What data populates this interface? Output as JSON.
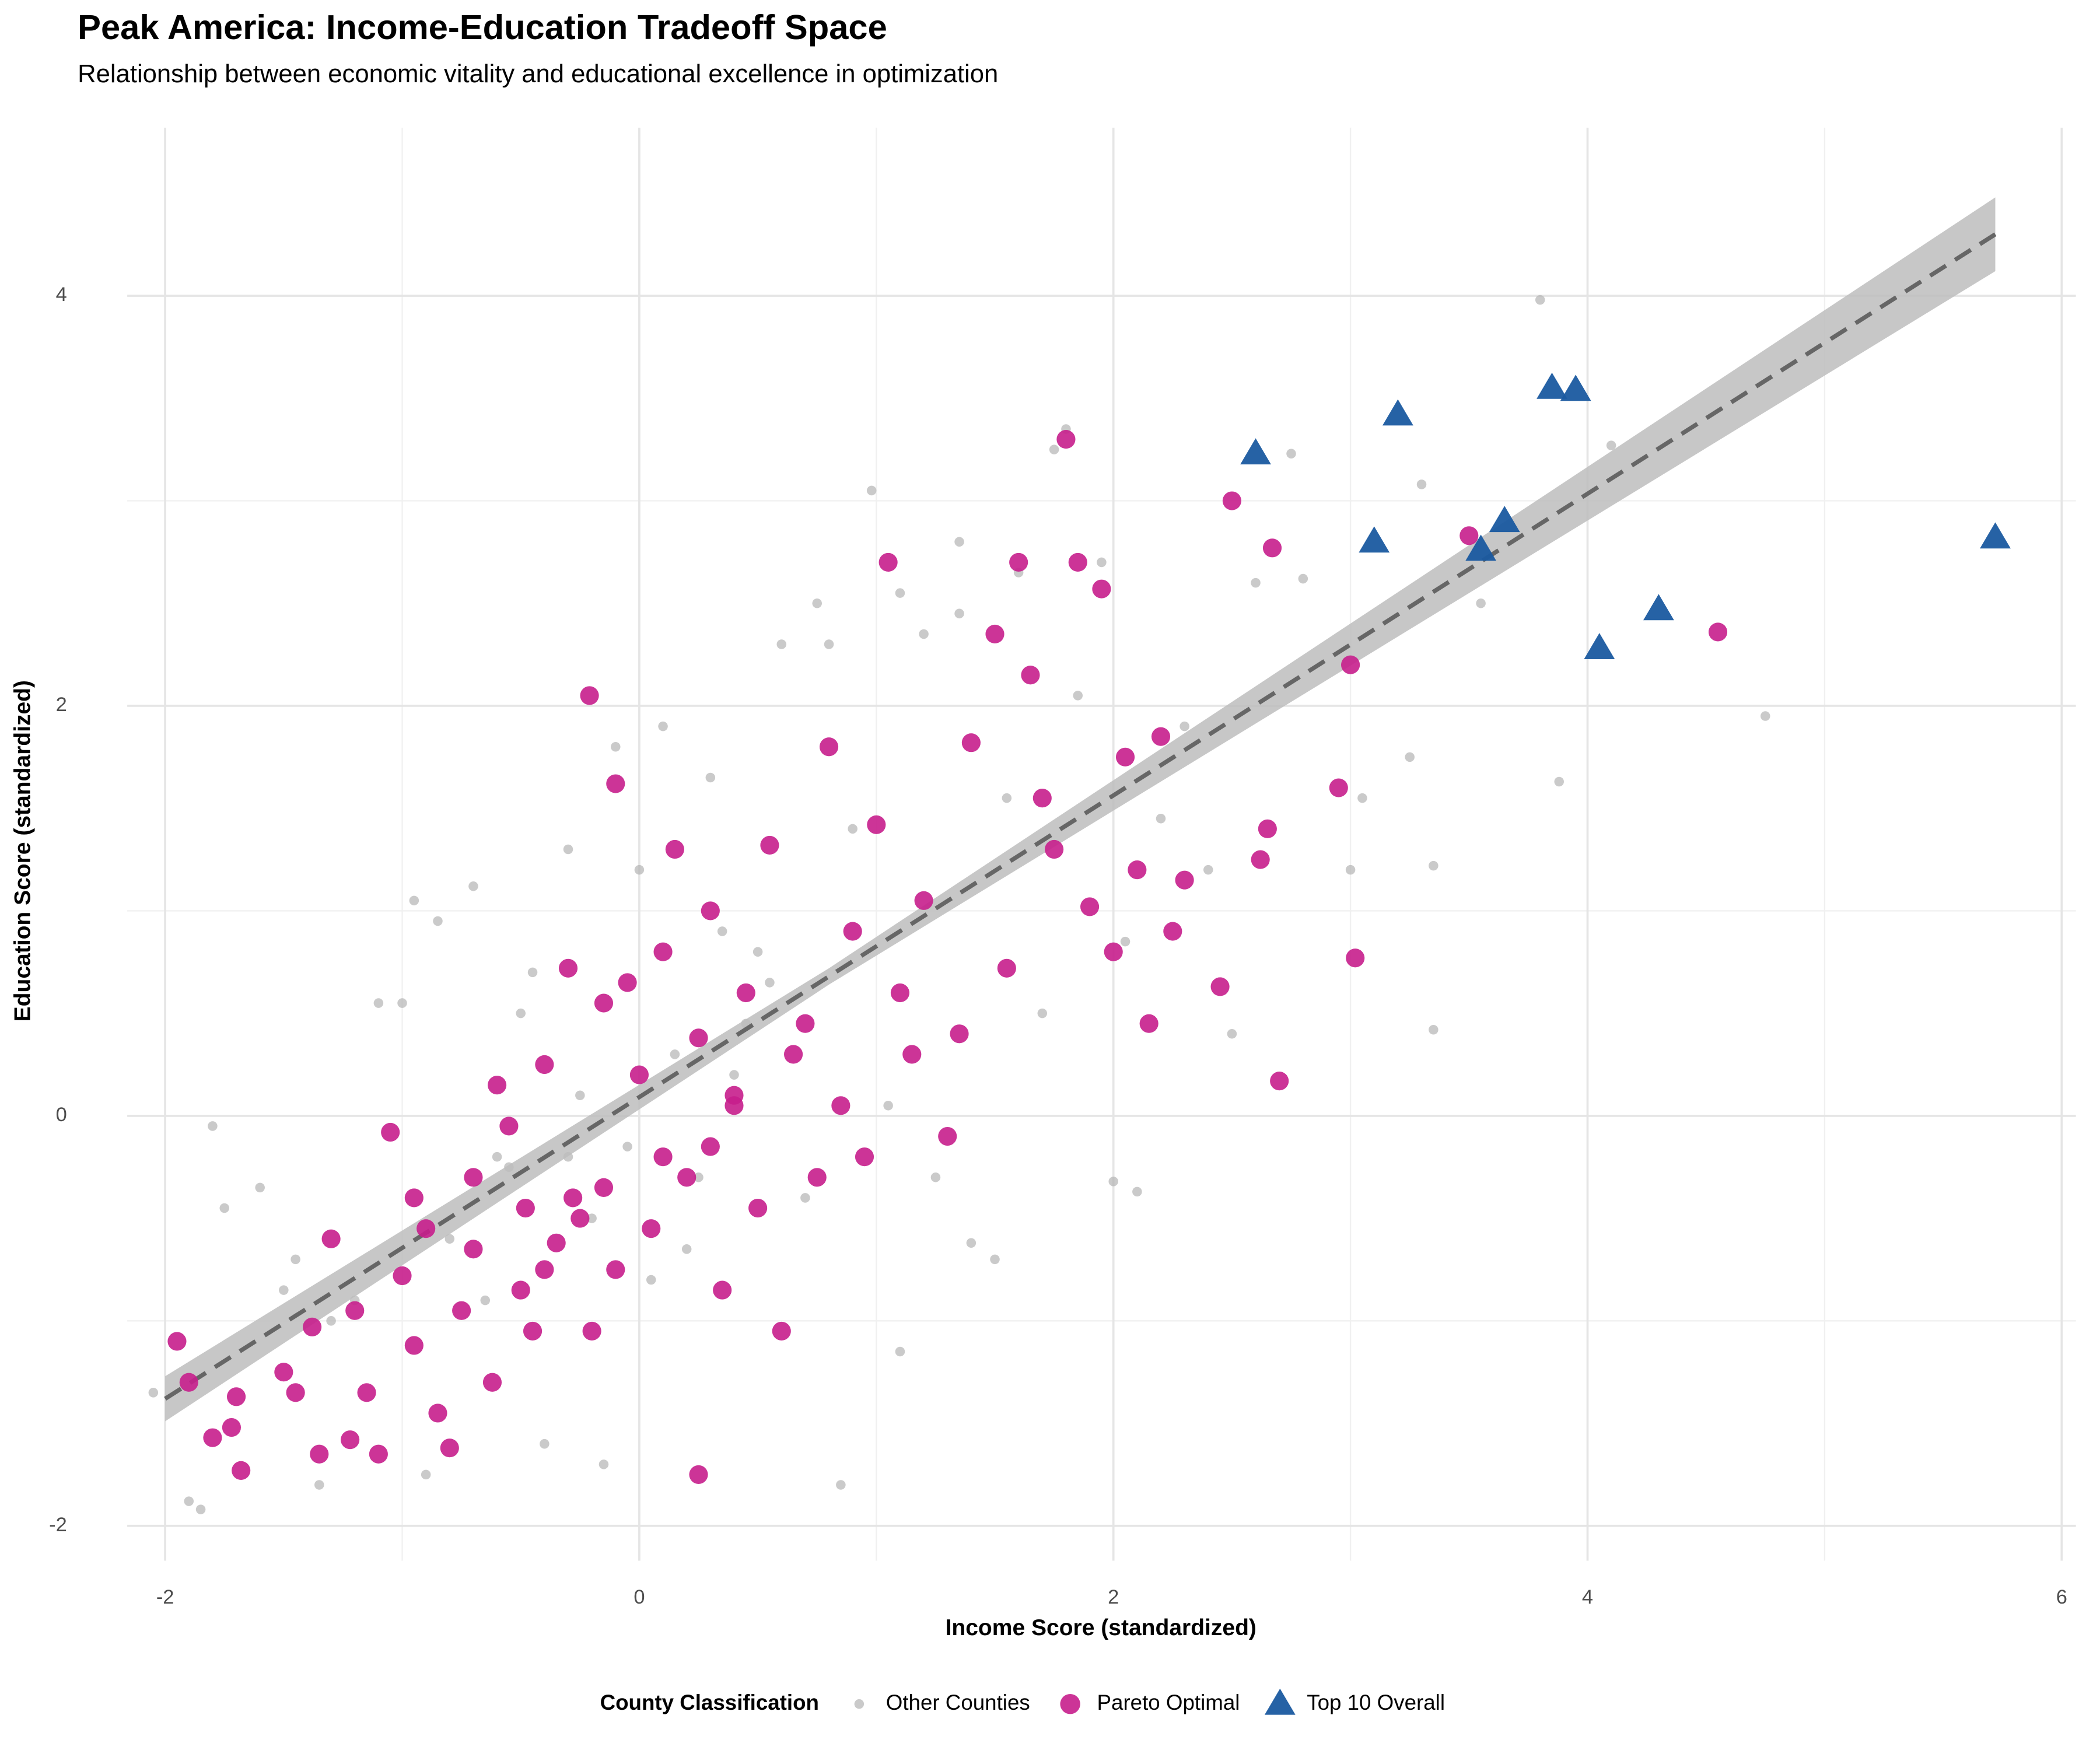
{
  "chart_data": {
    "type": "scatter",
    "title": "Peak America: Income-Education Tradeoff Space",
    "subtitle": "Relationship between economic vitality and educational excellence in optimization",
    "x_label": "Income Score (standardized)",
    "y_label": "Education Score (standardized)",
    "legend_title": "County Classification",
    "legend_position": "bottom",
    "grid": true,
    "xlim": [
      -2.16,
      6.06
    ],
    "xticks": [
      -2,
      0,
      2,
      4,
      6
    ],
    "x_minor_ticks": [
      -1,
      1,
      3,
      5
    ],
    "ylim": [
      -2.17,
      4.82
    ],
    "yticks": [
      -2,
      0,
      2,
      4
    ],
    "y_minor_ticks": [
      -1,
      1,
      3
    ],
    "series": [
      {
        "name": "Other Counties",
        "color": "#b3b3b3",
        "shape": "circle",
        "x": [
          -2.05,
          -1.9,
          -1.85,
          -1.8,
          -1.75,
          -1.6,
          -1.5,
          -1.35,
          -1.2,
          -1.1,
          -1.0,
          -0.9,
          -0.95,
          -0.85,
          -0.7,
          -0.6,
          -0.5,
          -0.4,
          -0.3,
          -0.2,
          -0.15,
          -0.1,
          0.0,
          0.05,
          0.1,
          0.2,
          0.3,
          0.4,
          0.5,
          0.6,
          0.7,
          0.75,
          0.8,
          0.85,
          0.9,
          0.98,
          1.05,
          1.1,
          1.1,
          1.2,
          1.25,
          1.35,
          1.35,
          1.4,
          1.5,
          1.55,
          1.6,
          1.7,
          1.75,
          1.8,
          1.85,
          1.95,
          2.0,
          2.05,
          2.1,
          2.2,
          2.3,
          2.4,
          2.5,
          2.6,
          2.75,
          2.8,
          3.0,
          3.05,
          3.25,
          3.3,
          3.35,
          3.35,
          3.8,
          3.88,
          4.1,
          4.75,
          3.55,
          -0.45,
          0.15,
          -0.8,
          -0.3,
          0.45,
          -1.3,
          -0.65,
          -0.25,
          0.25,
          0.55,
          -0.05,
          -1.45,
          -0.55,
          0.35
        ],
        "y": [
          -1.35,
          -1.88,
          -1.92,
          -0.05,
          -0.45,
          -0.35,
          -0.85,
          -1.8,
          -0.9,
          0.55,
          0.55,
          -1.75,
          1.05,
          0.95,
          1.12,
          -0.2,
          0.5,
          -1.6,
          1.3,
          -0.5,
          -1.7,
          1.8,
          1.2,
          -0.8,
          1.9,
          -0.65,
          1.65,
          0.2,
          0.8,
          2.3,
          -0.4,
          2.5,
          2.3,
          -1.8,
          1.4,
          3.05,
          0.05,
          2.55,
          -1.15,
          2.35,
          -0.3,
          2.45,
          2.8,
          -0.62,
          -0.7,
          1.55,
          2.65,
          0.5,
          3.25,
          3.35,
          2.05,
          2.7,
          -0.32,
          0.85,
          -0.37,
          1.45,
          1.9,
          1.2,
          0.4,
          2.6,
          3.23,
          2.62,
          1.2,
          1.55,
          1.75,
          3.08,
          1.22,
          0.42,
          3.98,
          1.63,
          3.27,
          1.95,
          2.5,
          0.7,
          0.3,
          -0.6,
          -0.2,
          0.45,
          -1.0,
          -0.9,
          0.1,
          -0.3,
          0.65,
          -0.15,
          -0.7,
          -0.25,
          0.9
        ]
      },
      {
        "name": "Pareto Optimal",
        "color": "#c71e8c",
        "shape": "circle",
        "x": [
          -1.95,
          -1.9,
          -1.8,
          -1.72,
          -1.7,
          -1.68,
          -1.5,
          -1.45,
          -1.35,
          -1.38,
          -1.3,
          -1.22,
          -1.15,
          -1.1,
          -1.05,
          -1.0,
          -0.95,
          -0.9,
          -0.85,
          -0.8,
          -0.75,
          -0.7,
          -0.62,
          -0.55,
          -0.5,
          -0.45,
          -0.4,
          -0.35,
          -0.3,
          -0.28,
          -0.2,
          -0.15,
          -0.1,
          -0.05,
          -0.1,
          0.0,
          0.05,
          0.1,
          0.15,
          0.2,
          0.25,
          0.3,
          0.35,
          0.4,
          0.45,
          0.5,
          0.55,
          0.6,
          0.7,
          0.75,
          0.8,
          0.85,
          0.9,
          0.95,
          1.0,
          1.05,
          1.1,
          1.15,
          1.2,
          1.3,
          1.35,
          1.4,
          1.5,
          1.55,
          1.6,
          1.65,
          1.7,
          1.75,
          1.8,
          1.85,
          1.9,
          1.95,
          2.0,
          2.05,
          2.1,
          2.15,
          2.2,
          2.25,
          2.3,
          2.45,
          2.5,
          2.62,
          2.65,
          2.7,
          2.67,
          2.95,
          3.0,
          3.02,
          3.5,
          4.55,
          0.25,
          -0.21,
          -0.48,
          -0.6,
          -0.15,
          0.3,
          -1.2,
          -0.95,
          -0.7,
          -0.4,
          -0.25,
          0.1,
          0.4,
          0.65
        ],
        "y": [
          -1.1,
          -1.3,
          -1.57,
          -1.52,
          -1.37,
          -1.73,
          -1.25,
          -1.35,
          -1.65,
          -1.03,
          -0.6,
          -1.58,
          -1.35,
          -1.65,
          -0.08,
          -0.78,
          -1.12,
          -0.55,
          -1.45,
          -1.62,
          -0.95,
          -0.3,
          -1.3,
          -0.05,
          -0.85,
          -1.05,
          0.25,
          -0.62,
          0.72,
          -0.4,
          -1.05,
          0.55,
          -0.75,
          0.65,
          1.62,
          0.2,
          -0.55,
          0.8,
          1.3,
          -0.3,
          0.38,
          1.0,
          -0.85,
          0.1,
          0.6,
          -0.45,
          1.32,
          -1.05,
          0.45,
          -0.3,
          1.8,
          0.05,
          0.9,
          -0.2,
          1.42,
          2.7,
          0.6,
          0.3,
          1.05,
          -0.1,
          0.4,
          1.82,
          2.35,
          0.72,
          2.7,
          2.15,
          1.55,
          1.3,
          3.3,
          2.7,
          1.02,
          2.57,
          0.8,
          1.75,
          1.2,
          0.45,
          1.85,
          0.9,
          1.15,
          0.63,
          3.0,
          1.25,
          1.4,
          0.17,
          2.77,
          1.6,
          2.2,
          0.77,
          2.83,
          2.36,
          -1.75,
          2.05,
          -0.45,
          0.15,
          -0.35,
          -0.15,
          -0.95,
          -0.4,
          -0.65,
          -0.75,
          -0.5,
          -0.2,
          0.05,
          0.3
        ]
      },
      {
        "name": "Top 10 Overall",
        "color": "#1a5aa0",
        "shape": "triangle",
        "x": [
          2.6,
          3.2,
          3.85,
          3.95,
          3.1,
          3.65,
          3.55,
          4.3,
          4.05,
          5.72
        ],
        "y": [
          3.23,
          3.42,
          3.55,
          3.54,
          2.8,
          2.9,
          2.76,
          2.47,
          2.28,
          2.82
        ]
      }
    ],
    "trend": {
      "color": "#666666",
      "band_color": "#bdbdbd",
      "x": [
        -2,
        0.8,
        5.72
      ],
      "y": [
        -1.38,
        0.68,
        4.3
      ],
      "lower": [
        -1.49,
        0.64,
        4.12
      ],
      "upper": [
        -1.27,
        0.72,
        4.48
      ]
    }
  }
}
